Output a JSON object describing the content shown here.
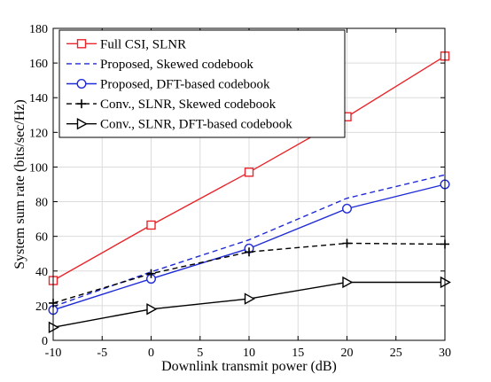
{
  "chart_data": {
    "type": "line",
    "title": "",
    "xlabel": "Downlink transmit power (dB)",
    "ylabel": "System sum rate (bits/sec/Hz)",
    "xlim": [
      -10,
      30
    ],
    "ylim": [
      0,
      180
    ],
    "xticks": [
      -10,
      -5,
      0,
      5,
      10,
      15,
      20,
      25,
      30
    ],
    "yticks": [
      0,
      20,
      40,
      60,
      80,
      100,
      120,
      140,
      160,
      180
    ],
    "grid": true,
    "legend_position": "top-left",
    "series": [
      {
        "name": "Full CSI, SLNR",
        "color": "#e8262b",
        "line_style": "solid",
        "marker": "square",
        "x": [
          -10,
          0,
          10,
          20,
          30
        ],
        "y": [
          34.5,
          66.5,
          97,
          129,
          164
        ]
      },
      {
        "name": "Proposed, Skewed codebook",
        "color": "#1f2bd6",
        "line_style": "dashed",
        "marker": "none",
        "x": [
          -10,
          0,
          10,
          20,
          30
        ],
        "y": [
          19.5,
          39.5,
          58,
          82,
          95.5
        ]
      },
      {
        "name": "Proposed, DFT-based codebook",
        "color": "#1f2bd6",
        "line_style": "solid",
        "marker": "circle",
        "x": [
          -10,
          0,
          10,
          20,
          30
        ],
        "y": [
          17.5,
          35.5,
          53,
          76,
          90
        ]
      },
      {
        "name": "Conv., SLNR, Skewed codebook",
        "color": "#000000",
        "line_style": "dashed",
        "marker": "plus",
        "x": [
          -10,
          0,
          10,
          20,
          30
        ],
        "y": [
          21.5,
          38.5,
          51,
          56,
          55.5
        ]
      },
      {
        "name": "Conv., SLNR, DFT-based codebook",
        "color": "#000000",
        "line_style": "solid",
        "marker": "triangle-right",
        "x": [
          -10,
          0,
          10,
          20,
          30
        ],
        "y": [
          7.5,
          18,
          24,
          33.5,
          33.5
        ]
      }
    ]
  }
}
